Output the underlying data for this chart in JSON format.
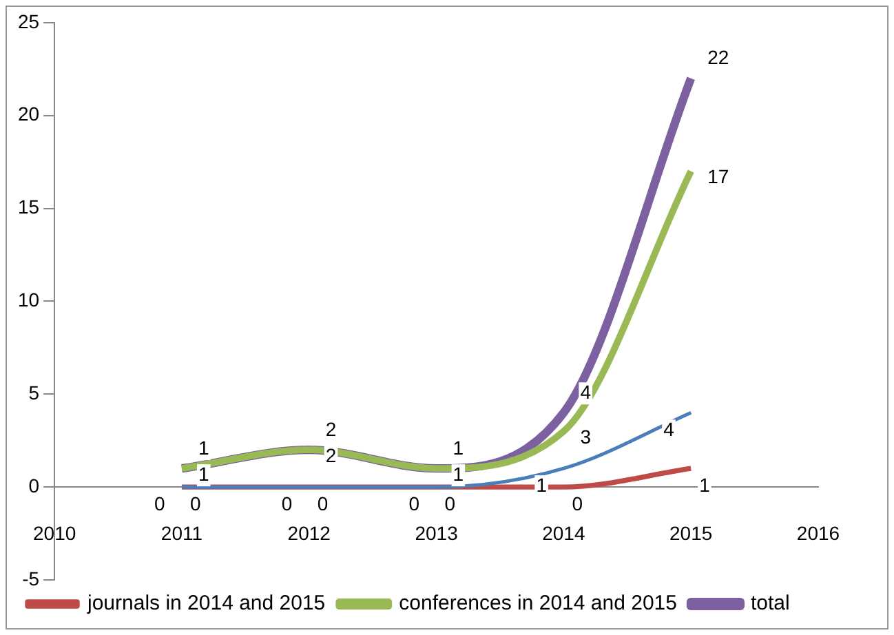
{
  "chart_data": {
    "type": "line",
    "x": [
      2011,
      2012,
      2013,
      2014,
      2015
    ],
    "series": [
      {
        "color": "#4a7ebb",
        "values": [
          0,
          0,
          0,
          1,
          4
        ]
      },
      {
        "name": "journals in 2014 and 2015",
        "color": "#be4b48",
        "values": [
          0,
          0,
          0,
          0,
          1
        ]
      },
      {
        "name": "conferences in 2014 and 2015",
        "color": "#98b954",
        "values": [
          1,
          2,
          1,
          3,
          17
        ]
      },
      {
        "name": "total",
        "color": "#7d60a0",
        "values": [
          1,
          2,
          1,
          4,
          22
        ]
      }
    ],
    "xlim": [
      2010,
      2016
    ],
    "xticks": [
      2010,
      2011,
      2012,
      2013,
      2014,
      2015,
      2016
    ],
    "ylim": [
      -5,
      25
    ],
    "yticks": [
      -5,
      0,
      5,
      10,
      15,
      20,
      25
    ],
    "grid": false,
    "legend": "bottom",
    "marker": "none",
    "line_style": "solid",
    "data_labels": true
  }
}
